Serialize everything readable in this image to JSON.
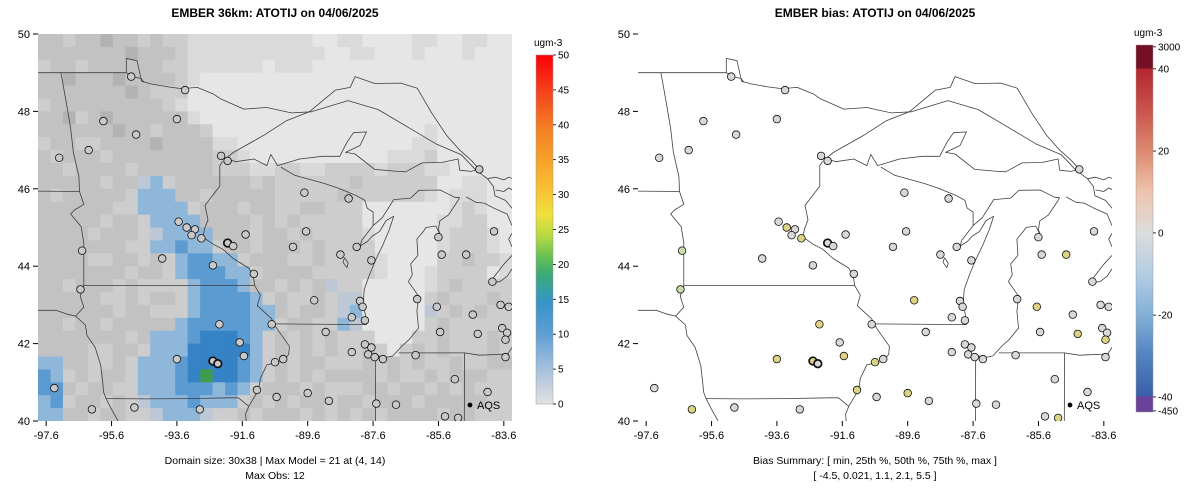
{
  "axes": {
    "x_ticks": [
      "-97.6",
      "-95.6",
      "-93.6",
      "-91.6",
      "-89.6",
      "-87.6",
      "-85.6",
      "-83.6"
    ],
    "y_ticks": [
      "50",
      "48",
      "46",
      "44",
      "42",
      "40"
    ],
    "lon_range": [
      -97.85,
      -83.35
    ],
    "lat_range": [
      40,
      50
    ]
  },
  "palette": {
    ".": "#e6e6e6",
    ",": "#dadada",
    "-": "#cdcdcd",
    "=": "#c2c2c2",
    "#": "#b3b3b3",
    "+": "#a6a6a6",
    "p": "#bdc8d4",
    "b": "#8fb7da",
    "B": "#5b9bd1",
    "C": "#3583c4",
    "g": "#3f9b4f"
  },
  "site_colors": {
    "g": "#d8d8d8",
    "y": "#ddd483",
    "gr": "#c8dcb0"
  },
  "model_site_fill": "#c9c9c9",
  "sites": [
    [
      -97.2,
      46.8,
      "g"
    ],
    [
      -96.3,
      47.0,
      "g"
    ],
    [
      -95.85,
      47.75,
      "g"
    ],
    [
      -95.0,
      48.9,
      "g"
    ],
    [
      -93.35,
      48.55,
      "g"
    ],
    [
      -94.85,
      47.4,
      "g"
    ],
    [
      -93.6,
      47.8,
      "g"
    ],
    [
      -92.25,
      46.85,
      "g"
    ],
    [
      -92.05,
      46.72,
      "g"
    ],
    [
      -96.5,
      44.4,
      "gr"
    ],
    [
      -96.55,
      43.4,
      "gr"
    ],
    [
      -93.55,
      45.15,
      "g"
    ],
    [
      -93.3,
      45.0,
      "y"
    ],
    [
      -93.05,
      44.95,
      "g"
    ],
    [
      -93.15,
      44.8,
      "g"
    ],
    [
      -92.85,
      44.72,
      "y"
    ],
    [
      -92.05,
      44.6,
      "g",
      1
    ],
    [
      -91.88,
      44.52,
      "g"
    ],
    [
      -92.5,
      44.02,
      "g"
    ],
    [
      -94.05,
      44.2,
      "g"
    ],
    [
      -91.25,
      43.8,
      "g"
    ],
    [
      -91.5,
      44.82,
      "g"
    ],
    [
      -89.65,
      44.9,
      "g"
    ],
    [
      -90.05,
      44.5,
      "g"
    ],
    [
      -88.6,
      44.3,
      "g"
    ],
    [
      -88.1,
      44.5,
      "g"
    ],
    [
      -87.65,
      44.15,
      "g"
    ],
    [
      -89.4,
      43.12,
      "y"
    ],
    [
      -88.0,
      43.1,
      "g"
    ],
    [
      -87.92,
      42.95,
      "g"
    ],
    [
      -87.85,
      42.6,
      "g"
    ],
    [
      -88.25,
      42.68,
      "g"
    ],
    [
      -89.05,
      42.3,
      "g"
    ],
    [
      -90.7,
      42.5,
      "g"
    ],
    [
      -92.3,
      42.5,
      "y"
    ],
    [
      -93.6,
      41.6,
      "y"
    ],
    [
      -92.5,
      41.55,
      "y",
      1
    ],
    [
      -92.35,
      41.48,
      "g",
      1
    ],
    [
      -91.55,
      41.68,
      "y"
    ],
    [
      -91.68,
      42.03,
      "g"
    ],
    [
      -90.6,
      41.52,
      "y"
    ],
    [
      -90.35,
      41.6,
      "g"
    ],
    [
      -91.15,
      40.8,
      "y"
    ],
    [
      -90.55,
      40.62,
      "g"
    ],
    [
      -89.6,
      40.72,
      "y"
    ],
    [
      -88.95,
      40.52,
      "g"
    ],
    [
      -88.25,
      41.78,
      "g"
    ],
    [
      -87.85,
      41.98,
      "g"
    ],
    [
      -87.65,
      41.9,
      "g"
    ],
    [
      -87.75,
      41.72,
      "g"
    ],
    [
      -87.55,
      41.65,
      "g"
    ],
    [
      -87.3,
      41.6,
      "g"
    ],
    [
      -86.3,
      41.7,
      "g"
    ],
    [
      -85.1,
      41.08,
      "g"
    ],
    [
      -87.5,
      40.45,
      "g"
    ],
    [
      -86.9,
      40.42,
      "g"
    ],
    [
      -85.4,
      40.12,
      "g"
    ],
    [
      -85.0,
      40.08,
      "y"
    ],
    [
      -84.1,
      40.75,
      "g"
    ],
    [
      -83.55,
      41.65,
      "g"
    ],
    [
      -83.65,
      42.4,
      "g"
    ],
    [
      -83.5,
      42.28,
      "g"
    ],
    [
      -83.55,
      42.1,
      "y"
    ],
    [
      -83.45,
      42.95,
      "g"
    ],
    [
      -83.7,
      43.0,
      "g"
    ],
    [
      -83.95,
      43.6,
      "g"
    ],
    [
      -84.55,
      42.75,
      "g"
    ],
    [
      -84.4,
      42.25,
      "y"
    ],
    [
      -85.65,
      42.95,
      "y"
    ],
    [
      -86.25,
      43.15,
      "g"
    ],
    [
      -85.55,
      42.3,
      "g"
    ],
    [
      -85.5,
      44.3,
      "g"
    ],
    [
      -84.75,
      44.3,
      "y"
    ],
    [
      -83.9,
      44.9,
      "g"
    ],
    [
      -85.6,
      44.75,
      "g"
    ],
    [
      -84.35,
      46.5,
      "g"
    ],
    [
      -88.35,
      45.75,
      "g"
    ],
    [
      -89.7,
      45.9,
      "g"
    ],
    [
      -96.2,
      40.3,
      "y"
    ],
    [
      -97.35,
      40.85,
      "g"
    ],
    [
      -94.9,
      40.35,
      "g"
    ],
    [
      -92.9,
      40.3,
      "g"
    ]
  ],
  "chart_data": [
    {
      "type": "map-raster",
      "title": "EMBER 36km: ATOTIJ on 04/06/2025",
      "units": "ugm-3",
      "caption1": "Domain size: 30x38 | Max Model = 21 at (4, 14)",
      "caption2": "Max Obs: 12",
      "legend": "AQS",
      "max_model": 21,
      "max_model_cell": "(4, 14)",
      "max_obs": 12,
      "colorbar": {
        "title": "ugm-3",
        "ticks": [
          {
            "label": "50",
            "f": 0
          },
          {
            "label": "45",
            "f": 0.1
          },
          {
            "label": "40",
            "f": 0.2
          },
          {
            "label": "35",
            "f": 0.3
          },
          {
            "label": "30",
            "f": 0.4
          },
          {
            "label": "25",
            "f": 0.5
          },
          {
            "label": "20",
            "f": 0.6
          },
          {
            "label": "15",
            "f": 0.7
          },
          {
            "label": "10",
            "f": 0.8
          },
          {
            "label": "5",
            "f": 0.9
          },
          {
            "label": "0",
            "f": 1
          }
        ],
        "stops": [
          [
            0,
            "#fb0007"
          ],
          [
            0.09,
            "#f5391b"
          ],
          [
            0.2,
            "#f47a23"
          ],
          [
            0.3,
            "#f6a12a"
          ],
          [
            0.4,
            "#f8c735"
          ],
          [
            0.46,
            "#eee13c"
          ],
          [
            0.52,
            "#b4d943"
          ],
          [
            0.58,
            "#64c054"
          ],
          [
            0.63,
            "#3ca878"
          ],
          [
            0.67,
            "#37a1a4"
          ],
          [
            0.71,
            "#3793c9"
          ],
          [
            0.8,
            "#5f9fd3"
          ],
          [
            0.88,
            "#96bbdc"
          ],
          [
            0.95,
            "#c6d0dc"
          ],
          [
            1,
            "#e3e3e3"
          ]
        ]
      },
      "raster": {
        "rows": 30,
        "cols": 38,
        "grid": [
          [
            "==-==",
            "#==-=",
            "--,,,",
            ",,,,,",
            ",,..,",
            ",....",
            ",,..,",
            ",.."
          ],
          [
            "=====",
            "==#==",
            "=-,,,",
            ",,,,,",
            ",,,..",
            ",,...",
            ",...,",
            "..."
          ],
          [
            "-==-=",
            "=====",
            "--,,,",
            ",,,.,",
            ",,...",
            ".....",
            ".....",
            "..."
          ],
          [
            "==#==",
            "=#===",
            "=-,..",
            ".....",
            ".....",
            ".....",
            ".....",
            "..."
          ],
          [
            "=====",
            "==#=-",
            "--...",
            ".....",
            ".....",
            ".....",
            ".....",
            "..."
          ],
          [
            "-====",
            "=====",
            "-,...",
            ".....",
            ".....",
            ".....",
            ".....",
            "..."
          ],
          [
            "==#-=",
            "#====",
            "==,..",
            ".....",
            ".....",
            ".....",
            ".....",
            "..."
          ],
          [
            "=====",
            "=#==-",
            "===-.",
            ".....",
            ".....",
            ".....",
            ".,...",
            "..."
          ],
          [
            "-==--",
            "====#",
            "====,",
            ",....",
            ".....",
            ".....",
            ",,...",
            "..."
          ],
          [
            "=-===",
            "-====",
            "====-",
            "-,...",
            ".....",
            "...,,",
            ",-...",
            "..."
          ],
          [
            "==-==",
            "==-==",
            "====-",
            "--,,-",
            "-,,--",
            "--,--",
            "-,,..",
            "..."
          ],
          [
            "=====",
            "-==pb",
            "-====",
            "==-=-",
            "-----",
            "=----",
            "--..,",
            ",.."
          ],
          [
            "=-===",
            "==-bb",
            "b==-=",
            "====-",
            "----=",
            "-----",
            "-,.,,",
            ",.."
          ],
          [
            "=====",
            "=--bb",
            "bb-==",
            "=-==-",
            "-==--",
            "-....",
            "...,-",
            ",.."
          ],
          [
            "=====",
            "-==-b",
            "bbb==",
            "==-=-",
            "=----",
            "-....",
            "..,,-",
            "-.."
          ],
          [
            "====-",
            "===-p",
            "bbbb=",
            "==-==",
            "-=---",
            "-,...",
            "..,--",
            "-,."
          ],
          [
            "=====",
            "==--b",
            "bBbb-",
            "==-==",
            "=-=--",
            "--...",
            "..,--",
            "-,."
          ],
          [
            "====-",
            "-==-=",
            "-bBBb",
            "b-===",
            "--=--",
            "--,..",
            "..--=",
            "--,"
          ],
          [
            "=====",
            "==-==",
            "-bBBB",
            "bb-==",
            "==---",
            "--,..",
            ".,---",
            "-.,"
          ],
          [
            "==-==",
            "=-=--",
            "--bBB",
            "Bb==-",
            "=-=p-",
            "-....",
            ".,-=-",
            "---"
          ],
          [
            "=====",
            "--=-=",
            "=-bBB",
            "BBb-=",
            "--=-p",
            "p....",
            ".-=--",
            "-=-"
          ],
          [
            "=====",
            "=-==-",
            "--bBB",
            "BBbb=",
            "-==-p",
            "b....",
            ".p-=-",
            "=--"
          ],
          [
            "==-==",
            "-====",
            "=bBBB",
            "BBbb-",
            "==--b",
            "p....",
            ".-=--",
            "---"
          ],
          [
            "=====",
            "==-=b",
            "bbBCC",
            "CBb-=",
            "-=-=-",
            "--...",
            "--=--",
            "-=-"
          ],
          [
            "====-",
            "-==-b",
            "bbCCC",
            "CCb-=",
            "-=-=-",
            "-=-.-",
            "=-=--",
            "-=-"
          ],
          [
            "bb==-",
            "-=-bb",
            "bBCCC",
            "CBb-=",
            "-==--",
            "-=-=-",
            "=--=-",
            "-=="
          ],
          [
            "Bb-=-",
            "==-bb",
            "bBCgC",
            "CBb-=",
            "-=-==",
            "==-=-",
            "-=-==",
            "=--"
          ],
          [
            "BB=-=",
            "=--bb",
            "bBBBb",
            "Bb-==",
            "=-=--",
            "-==-=",
            "=-=-=",
            "---"
          ],
          [
            "bB-==",
            "-=-pb",
            "bbBbb",
            "b-=-=",
            "-==-=",
            "=-===",
            "-====",
            "=--"
          ],
          [
            "bb==-",
            "==--p",
            "bbbp-",
            "-=-==",
            "=-=-=",
            "-=-==",
            "==-==",
            "---"
          ]
        ]
      }
    },
    {
      "type": "map-scatter",
      "title": "EMBER bias: ATOTIJ on 04/06/2025",
      "units": "ugm-3",
      "caption1": "Bias Summary: [ min, 25th %, 50th %, 75th %, max ]",
      "caption2": "[ -4.5,  0.021,  1.1,  2.1,  5.5 ]",
      "legend": "AQS",
      "bias_summary": {
        "min": -4.5,
        "p25": 0.021,
        "p50": 1.1,
        "p75": 2.1,
        "max": 5.5
      },
      "colorbar": {
        "title": "ugm-3",
        "ticks": [
          {
            "label": "3000",
            "f": 0.005
          },
          {
            "label": "40",
            "f": 0.065
          },
          {
            "label": "20",
            "f": 0.289
          },
          {
            "label": "0",
            "f": 0.512
          },
          {
            "label": "-20",
            "f": 0.736
          },
          {
            "label": "-40",
            "f": 0.959
          },
          {
            "label": "-450",
            "f": 0.997
          }
        ],
        "stops": [
          [
            0,
            "#731026"
          ],
          [
            0.064,
            "#731026"
          ],
          [
            0.0645,
            "#b4262f"
          ],
          [
            0.17,
            "#c8504a"
          ],
          [
            0.29,
            "#dd8a70"
          ],
          [
            0.4,
            "#eec4ae"
          ],
          [
            0.512,
            "#dcdcdc"
          ],
          [
            0.62,
            "#b5cee4"
          ],
          [
            0.736,
            "#82b0d7"
          ],
          [
            0.85,
            "#5282bf"
          ],
          [
            0.958,
            "#3a5fa9"
          ],
          [
            0.9585,
            "#6a4099"
          ],
          [
            1,
            "#6a4099"
          ]
        ]
      }
    }
  ]
}
